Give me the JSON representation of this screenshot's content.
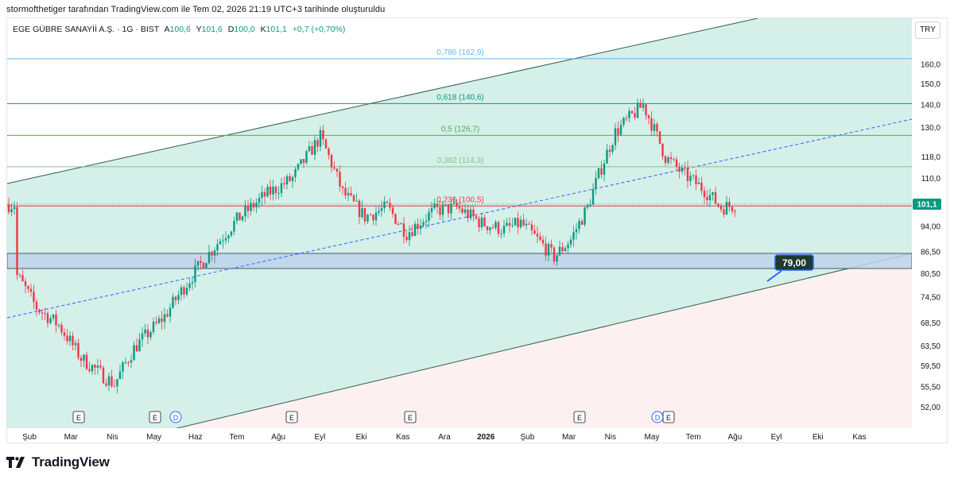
{
  "caption": "stormofthetiger tarafından TradingView.com ile Tem 02, 2026 21:19 UTC+3 tarihinde oluşturuldu",
  "legend": {
    "symbol": "EGE GÜBRE SANAYİİ A.Ş. · 1G · BIST",
    "open_label": "A",
    "open": "100,6",
    "high_label": "Y",
    "high": "101,6",
    "low_label": "D",
    "low": "100,0",
    "close_label": "K",
    "close": "101,1",
    "change": "+0,7 (+0,70%)"
  },
  "currency_button": "TRY",
  "branding": {
    "name": "TradingView"
  },
  "colors": {
    "up": "#089981",
    "down": "#f23645",
    "ghost": "#b2b5be",
    "channel_fill": "#d5efe9",
    "zone_fill": "#bcd3ea",
    "trend_dashed": "#2962ff",
    "price_tag": "#089981"
  },
  "chart_data": {
    "type": "candlestick",
    "y_scale": "log",
    "ylim": [
      48.5,
      186
    ],
    "y_ticks": [
      "160,0",
      "150,0",
      "140,0",
      "130,0",
      "118,0",
      "110,0",
      "94,00",
      "86,50",
      "80,50",
      "74,50",
      "68,50",
      "63,50",
      "59,50",
      "55,50",
      "52,00"
    ],
    "x_ticks": [
      "Şub",
      "Mar",
      "Nis",
      "May",
      "Haz",
      "Tem",
      "Ağu",
      "Eyl",
      "Eki",
      "Kas",
      "Ara",
      "2026",
      "Şub",
      "Mar",
      "Nis",
      "May",
      "Tem",
      "Ağu",
      "Eyl",
      "Eki",
      "Kas"
    ],
    "last_price_label": "101,1",
    "fib_levels": [
      {
        "label": "0,786 (162,9)",
        "value": 162.9,
        "color": "#64b5f6"
      },
      {
        "label": "0,618 (140,6)",
        "value": 140.6,
        "color": "#089981"
      },
      {
        "label": "0,5 (126,7)",
        "value": 126.7,
        "color": "#4caf50"
      },
      {
        "label": "0,382 (114,3)",
        "value": 114.3,
        "color": "#81c784"
      },
      {
        "label": "0,236 (100,5)",
        "value": 100.5,
        "color": "#f23645"
      }
    ],
    "support_zone": [
      82.6,
      85.8
    ],
    "target_callout": "79,00",
    "event_markers": [
      {
        "label": "E"
      },
      {
        "label": "E"
      },
      {
        "label": "D"
      },
      {
        "label": "E"
      },
      {
        "label": "E"
      },
      {
        "label": "E"
      },
      {
        "label": "D"
      },
      {
        "label": "E"
      }
    ],
    "path_points": [
      [
        80,
        3
      ],
      [
        72,
        10
      ],
      [
        68,
        18
      ],
      [
        61,
        26
      ],
      [
        58,
        33
      ],
      [
        56,
        38
      ],
      [
        63,
        45
      ],
      [
        70,
        56
      ],
      [
        82,
        68
      ],
      [
        96,
        82
      ],
      [
        104,
        92
      ],
      [
        110,
        102
      ],
      [
        126,
        112
      ],
      [
        105,
        120
      ],
      [
        97,
        128
      ],
      [
        100,
        136
      ],
      [
        92,
        143
      ],
      [
        99,
        153
      ],
      [
        100,
        161
      ],
      [
        95,
        170
      ],
      [
        93,
        178
      ],
      [
        95,
        184
      ],
      [
        90,
        190
      ],
      [
        85,
        196
      ],
      [
        90,
        202
      ],
      [
        100,
        208
      ],
      [
        128,
        218
      ],
      [
        140,
        228
      ],
      [
        118,
        236
      ],
      [
        112,
        242
      ],
      [
        106,
        250
      ],
      [
        100,
        256
      ],
      [
        101,
        262
      ]
    ],
    "ghost_points": [
      [
        116,
        280
      ],
      [
        124,
        284
      ],
      [
        130,
        290
      ],
      [
        122,
        296
      ],
      [
        116,
        300
      ],
      [
        112,
        304
      ],
      [
        106,
        308
      ],
      [
        110,
        312
      ],
      [
        108,
        316
      ],
      [
        104,
        320
      ],
      [
        110,
        324
      ],
      [
        114,
        328
      ],
      [
        120,
        332
      ],
      [
        124,
        336
      ],
      [
        130,
        340
      ],
      [
        134,
        344
      ],
      [
        128,
        348
      ]
    ]
  }
}
